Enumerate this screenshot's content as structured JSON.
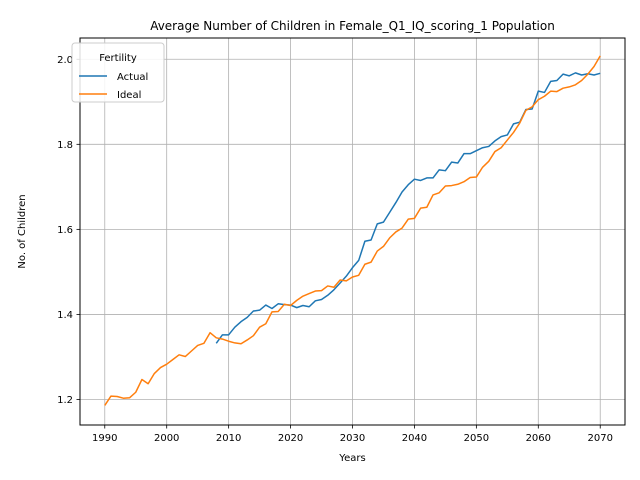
{
  "chart_data": {
    "type": "line",
    "title": "Average Number of Children in Female_Q1_IQ_scoring_1 Population",
    "xlabel": "Years",
    "ylabel": "No. of Children",
    "xlim": [
      1986,
      2074
    ],
    "ylim": [
      1.14,
      2.05
    ],
    "xticks": [
      1990,
      2000,
      2010,
      2020,
      2030,
      2040,
      2050,
      2060,
      2070
    ],
    "yticks": [
      1.2,
      1.4,
      1.6,
      1.8,
      2.0
    ],
    "grid": true,
    "legend": {
      "title": "Fertility",
      "placement": "top-left"
    },
    "series": [
      {
        "name": "Actual",
        "color": "#1f77b4",
        "x": [
          2008,
          2009,
          2010,
          2011,
          2012,
          2013,
          2014,
          2015,
          2016,
          2017,
          2018,
          2019,
          2020,
          2021,
          2022,
          2023,
          2024,
          2025,
          2026,
          2027,
          2028,
          2029,
          2030,
          2031,
          2032,
          2033,
          2034,
          2035,
          2036,
          2037,
          2038,
          2039,
          2040,
          2041,
          2042,
          2043,
          2044,
          2045,
          2046,
          2047,
          2048,
          2049,
          2050,
          2051,
          2052,
          2053,
          2054,
          2055,
          2056,
          2057,
          2058,
          2059,
          2060,
          2061,
          2062,
          2063,
          2064,
          2065,
          2066,
          2067,
          2068,
          2069,
          2070
        ],
        "values": [
          1.332,
          1.352,
          1.352,
          1.37,
          1.383,
          1.393,
          1.408,
          1.41,
          1.422,
          1.414,
          1.425,
          1.423,
          1.422,
          1.416,
          1.421,
          1.418,
          1.432,
          1.435,
          1.445,
          1.458,
          1.474,
          1.49,
          1.51,
          1.527,
          1.572,
          1.575,
          1.613,
          1.617,
          1.64,
          1.663,
          1.688,
          1.705,
          1.718,
          1.715,
          1.721,
          1.721,
          1.74,
          1.738,
          1.758,
          1.756,
          1.778,
          1.778,
          1.785,
          1.792,
          1.795,
          1.808,
          1.818,
          1.822,
          1.848,
          1.852,
          1.882,
          1.883,
          1.925,
          1.922,
          1.948,
          1.95,
          1.965,
          1.961,
          1.968,
          1.963,
          1.966,
          1.963,
          1.967
        ]
      },
      {
        "name": "Ideal",
        "color": "#ff7f0e",
        "x": [
          1990,
          1991,
          1992,
          1993,
          1994,
          1995,
          1996,
          1997,
          1998,
          1999,
          2000,
          2001,
          2002,
          2003,
          2004,
          2005,
          2006,
          2007,
          2008,
          2009,
          2010,
          2011,
          2012,
          2013,
          2014,
          2015,
          2016,
          2017,
          2018,
          2019,
          2020,
          2021,
          2022,
          2023,
          2024,
          2025,
          2026,
          2027,
          2028,
          2029,
          2030,
          2031,
          2032,
          2033,
          2034,
          2035,
          2036,
          2037,
          2038,
          2039,
          2040,
          2041,
          2042,
          2043,
          2044,
          2045,
          2046,
          2047,
          2048,
          2049,
          2050,
          2051,
          2052,
          2053,
          2054,
          2055,
          2056,
          2057,
          2058,
          2059,
          2060,
          2061,
          2062,
          2063,
          2064,
          2065,
          2066,
          2067,
          2068,
          2069,
          2070
        ],
        "values": [
          1.186,
          1.208,
          1.207,
          1.203,
          1.204,
          1.217,
          1.247,
          1.237,
          1.261,
          1.275,
          1.283,
          1.294,
          1.305,
          1.301,
          1.314,
          1.327,
          1.332,
          1.357,
          1.345,
          1.342,
          1.337,
          1.333,
          1.331,
          1.34,
          1.35,
          1.37,
          1.378,
          1.406,
          1.407,
          1.424,
          1.421,
          1.433,
          1.443,
          1.449,
          1.455,
          1.456,
          1.467,
          1.464,
          1.481,
          1.479,
          1.488,
          1.492,
          1.518,
          1.523,
          1.549,
          1.56,
          1.58,
          1.594,
          1.603,
          1.624,
          1.626,
          1.65,
          1.652,
          1.681,
          1.686,
          1.702,
          1.703,
          1.706,
          1.712,
          1.722,
          1.723,
          1.746,
          1.76,
          1.783,
          1.792,
          1.81,
          1.828,
          1.85,
          1.88,
          1.888,
          1.905,
          1.913,
          1.925,
          1.924,
          1.932,
          1.935,
          1.94,
          1.95,
          1.965,
          1.983,
          2.008
        ]
      }
    ]
  }
}
